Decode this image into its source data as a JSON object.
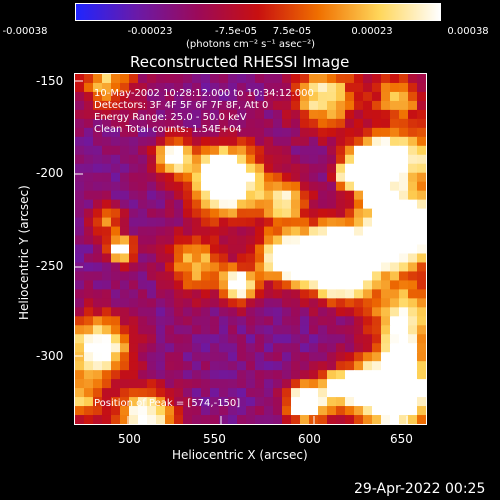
{
  "colorbar": {
    "ticks": [
      "-0.00038",
      "-0.00023",
      "-7.5e-05",
      "7.5e-05",
      "0.00023",
      "0.00038"
    ],
    "units": "(photons cm⁻² s⁻¹ asec⁻²)",
    "stops": [
      "#1f25ff",
      "#6a1aa8",
      "#9b0a5a",
      "#c81010",
      "#f07000",
      "#ffd65a",
      "#ffffff"
    ]
  },
  "plot": {
    "title": "Reconstructed RHESSI Image",
    "info_lines": [
      "10-May-2002 10:28:12.000 to 10:34:12.000",
      "Detectors: 3F 4F 5F 6F 7F 8F, Att 0",
      "Energy Range: 25.0 - 50.0 keV",
      "Clean    Total counts: 1.54E+04"
    ],
    "peak_label": "Position of Peak = [574,-150]",
    "x_ticks": [
      "500",
      "550",
      "600",
      "650"
    ],
    "y_ticks": [
      "-150",
      "-200",
      "-250",
      "-300"
    ],
    "x_label": "Heliocentric X (arcsec)",
    "y_label": "Heliocentric Y (arcsec)"
  },
  "timestamp": "29-Apr-2022 00:25"
}
